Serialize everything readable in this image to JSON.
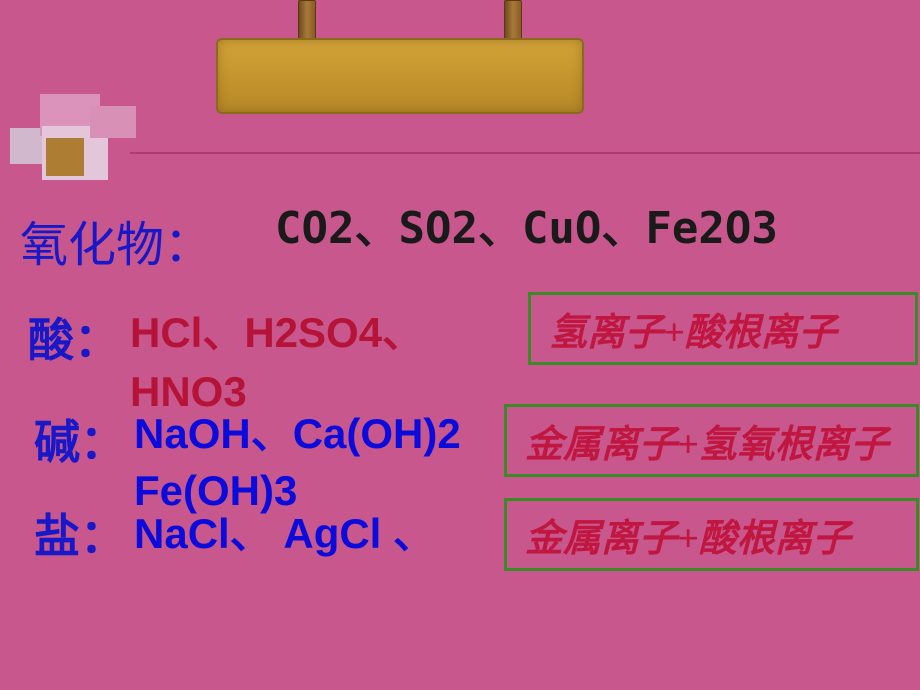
{
  "decor": {
    "sign_board_color": "#c8992f",
    "rod_color": "#8a5c24",
    "icon_colors": [
      "#d2b8cc",
      "#db92bb",
      "#e4c6da",
      "#ac7d33",
      "#d890b6"
    ]
  },
  "theme": {
    "background": "#c7578c",
    "label_color": "#1818c8",
    "acid_color": "#b51337",
    "base_salt_color": "#0b0bdc",
    "oxide_text_color": "#1a1a1a",
    "box_border": "#3a8a27",
    "box_text": "#c01640",
    "rule_color": "#b23a76"
  },
  "rows": {
    "oxide": {
      "label": "氧化物：",
      "formulas": "CO2、SO2、CuO、Fe2O3"
    },
    "acid": {
      "label": "酸：",
      "formulas": "HCl、H2SO4、HNO3",
      "ion_desc": "氢离子+酸根离子"
    },
    "base": {
      "label": "碱：",
      "formulas": "NaOH、Ca(OH)2 Fe(OH)3",
      "ion_desc": "金属离子+氢氧根离子"
    },
    "salt": {
      "label": "盐：",
      "formulas": "NaCl、 AgCl 、",
      "ion_desc": "金属离子+酸根离子"
    }
  }
}
